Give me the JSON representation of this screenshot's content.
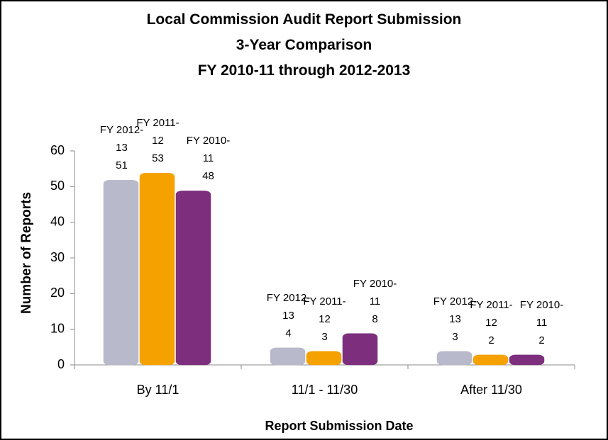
{
  "chart_data": {
    "type": "bar",
    "title": [
      "Local Commission Audit Report Submission",
      "3-Year Comparison",
      "FY 2010-11 through 2012-2013"
    ],
    "x_label": "Report Submission Date",
    "y_label": "Number of Reports",
    "categories": [
      "By 11/1",
      "11/1 - 11/30",
      "After 11/30"
    ],
    "series": [
      {
        "name": "FY 2012-13",
        "color": "#b9b9cc",
        "values": [
          51,
          4,
          3
        ]
      },
      {
        "name": "FY 2011-12",
        "color": "#f5a100",
        "values": [
          53,
          3,
          2
        ]
      },
      {
        "name": "FY 2010-11",
        "color": "#7d2f7d",
        "values": [
          48,
          8,
          2
        ]
      }
    ],
    "ylim": [
      0,
      60
    ],
    "yticks": [
      0,
      10,
      20,
      30,
      40,
      50,
      60
    ],
    "grid": false
  }
}
